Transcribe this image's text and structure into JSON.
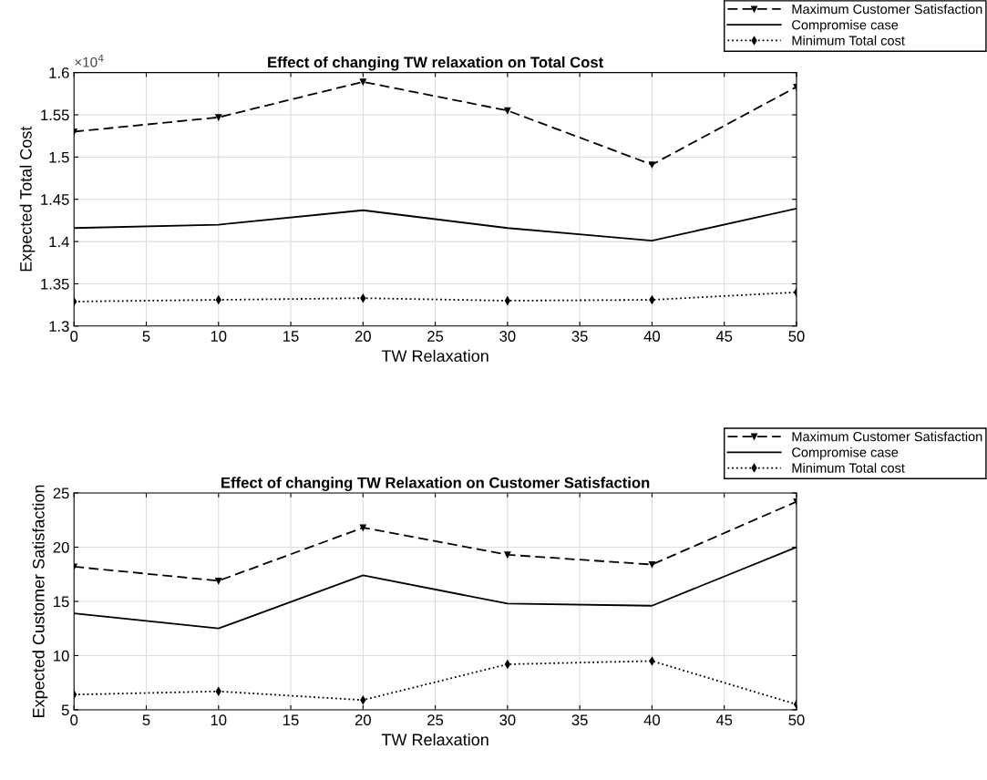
{
  "chart_data": [
    {
      "type": "line",
      "title": "Effect of changing TW relaxation on Total Cost",
      "xlabel": "TW Relaxation",
      "ylabel": "Expected Total Cost",
      "annotations": [
        "×10$^{4}$"
      ],
      "x": [
        0,
        10,
        20,
        30,
        40,
        50
      ],
      "series": [
        {
          "name": "Maximum Customer Satisfaction",
          "color": "#000000",
          "line_style": "dashed",
          "marker": "triangle",
          "values": [
            1.53,
            1.547,
            1.589,
            1.555,
            1.491,
            1.583
          ]
        },
        {
          "name": "Compromise case",
          "color": "#000000",
          "line_style": "solid",
          "marker": "none",
          "values": [
            1.416,
            1.42,
            1.437,
            1.416,
            1.401,
            1.439
          ]
        },
        {
          "name": "Minimum Total cost",
          "color": "#000000",
          "line_style": "dotted",
          "marker": "diamond",
          "values": [
            1.329,
            1.331,
            1.333,
            1.33,
            1.331,
            1.34
          ]
        }
      ],
      "xlim": [
        0,
        50
      ],
      "xticks": [
        0,
        5,
        10,
        15,
        20,
        25,
        30,
        35,
        40,
        45,
        50
      ],
      "ylim": [
        1.3,
        1.6
      ],
      "yticks": [
        1.3,
        1.35,
        1.4,
        1.45,
        1.5,
        1.55,
        1.6
      ],
      "grid": true,
      "legend": "top right"
    },
    {
      "type": "line",
      "title": "Effect of changing TW Relaxation on Customer Satisfaction",
      "xlabel": "TW Relaxation",
      "ylabel": "Expected Customer Satisfaction",
      "x": [
        0,
        10,
        20,
        30,
        40,
        50
      ],
      "series": [
        {
          "name": "Maximum Customer Satisfaction",
          "color": "#000000",
          "line_style": "dashed",
          "marker": "triangle",
          "values": [
            18.2,
            16.9,
            21.8,
            19.3,
            18.4,
            24.2
          ]
        },
        {
          "name": "Compromise case",
          "color": "#000000",
          "line_style": "solid",
          "marker": "none",
          "values": [
            13.9,
            12.5,
            17.4,
            14.8,
            14.6,
            20.0
          ]
        },
        {
          "name": "Minimum Total cost",
          "color": "#000000",
          "line_style": "dotted",
          "marker": "diamond",
          "values": [
            6.4,
            6.7,
            5.9,
            9.2,
            9.5,
            5.5
          ]
        }
      ],
      "xlim": [
        0,
        50
      ],
      "xticks": [
        0,
        5,
        10,
        15,
        20,
        25,
        30,
        35,
        40,
        45,
        50
      ],
      "ylim": [
        5,
        25
      ],
      "yticks": [
        5,
        10,
        15,
        20,
        25
      ],
      "grid": true,
      "legend": "top right"
    }
  ]
}
